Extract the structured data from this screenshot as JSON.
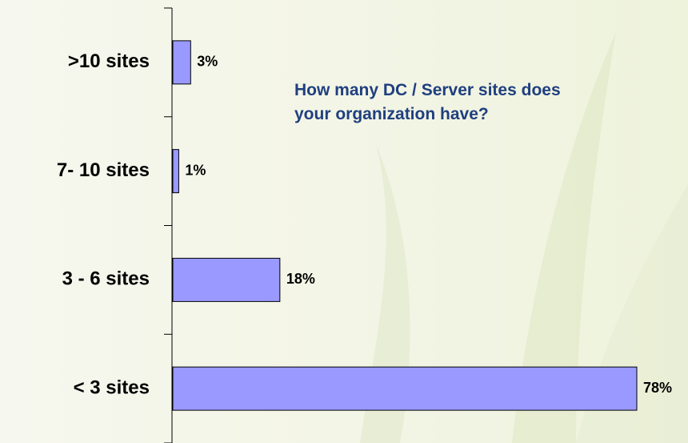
{
  "chart_data": {
    "type": "bar",
    "orientation": "horizontal",
    "title": "How many DC / Server sites does your organization have?",
    "categories": [
      ">10 sites",
      "7- 10 sites",
      "3 - 6 sites",
      "< 3 sites"
    ],
    "values": [
      3,
      1,
      18,
      78
    ],
    "value_labels": [
      "3%",
      "1%",
      "18%",
      "78%"
    ],
    "color": "#9999ff"
  }
}
